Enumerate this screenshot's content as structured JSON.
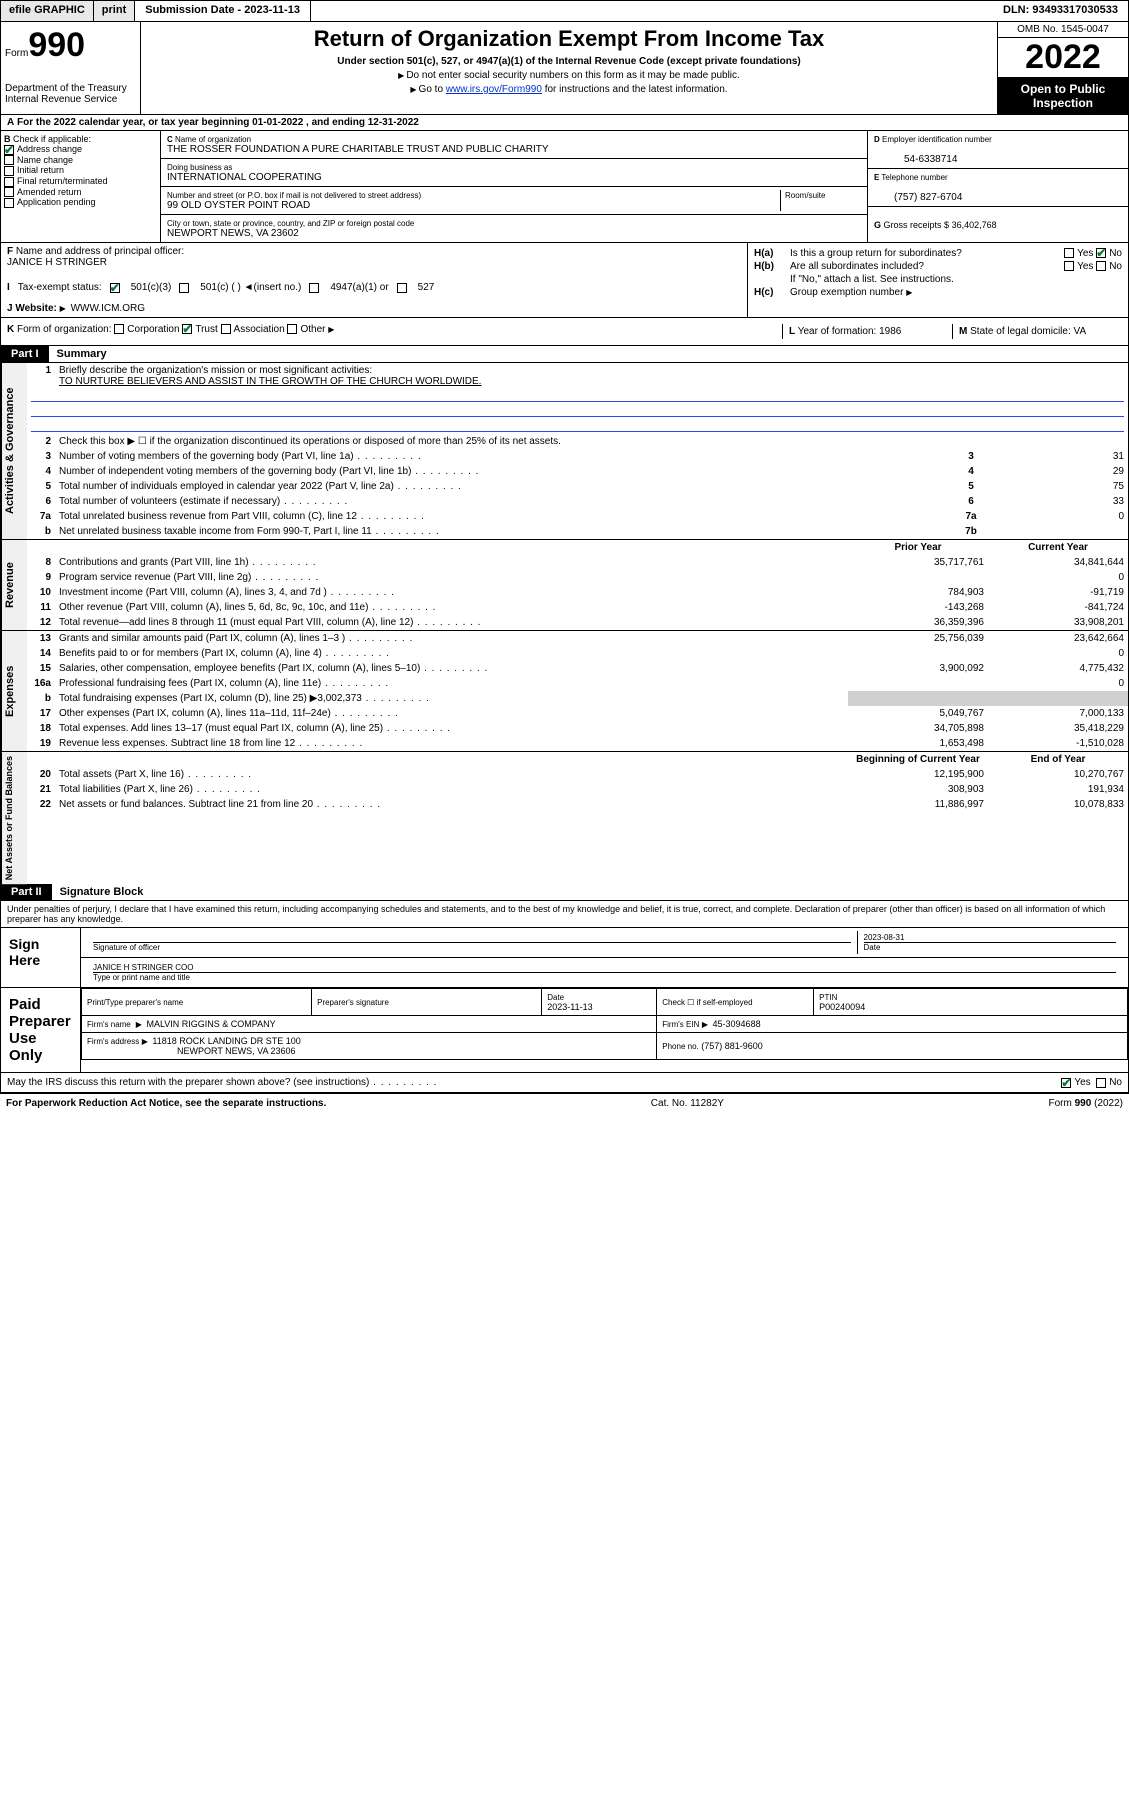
{
  "topbar": {
    "efile": "efile GRAPHIC",
    "print": "print",
    "subdate_label": "Submission Date - ",
    "subdate": "2023-11-13",
    "dln_label": "DLN: ",
    "dln": "93493317030533"
  },
  "header": {
    "form_word": "Form",
    "form_num": "990",
    "dept": "Department of the Treasury",
    "irs": "Internal Revenue Service",
    "title": "Return of Organization Exempt From Income Tax",
    "sub1": "Under section 501(c), 527, or 4947(a)(1) of the Internal Revenue Code (except private foundations)",
    "sub2": "Do not enter social security numbers on this form as it may be made public.",
    "sub3_pre": "Go to ",
    "sub3_link": "www.irs.gov/Form990",
    "sub3_post": " for instructions and the latest information.",
    "omb": "OMB No. 1545-0047",
    "year": "2022",
    "open": "Open to Public Inspection"
  },
  "calyear": {
    "text_pre": "For the 2022 calendar year, or tax year beginning ",
    "begin": "01-01-2022",
    "mid": " , and ending ",
    "end": "12-31-2022"
  },
  "B": {
    "label": "Check if applicable:",
    "items": [
      "Address change",
      "Name change",
      "Initial return",
      "Final return/terminated",
      "Amended return",
      "Application pending"
    ],
    "checked_idx": 0
  },
  "C": {
    "name_lbl": "Name of organization",
    "name": "THE ROSSER FOUNDATION A PURE CHARITABLE TRUST AND PUBLIC CHARITY",
    "dba_lbl": "Doing business as",
    "dba": "INTERNATIONAL COOPERATING",
    "addr_lbl": "Number and street (or P.O. box if mail is not delivered to street address)",
    "room_lbl": "Room/suite",
    "addr": "99 OLD OYSTER POINT ROAD",
    "city_lbl": "City or town, state or province, country, and ZIP or foreign postal code",
    "city": "NEWPORT NEWS, VA  23602"
  },
  "D": {
    "lbl": "Employer identification number",
    "val": "54-6338714"
  },
  "E": {
    "lbl": "Telephone number",
    "val": "(757) 827-6704"
  },
  "G": {
    "lbl": "Gross receipts $",
    "val": "36,402,768"
  },
  "F": {
    "lbl": "Name and address of principal officer:",
    "val": "JANICE H STRINGER"
  },
  "H": {
    "a": "Is this a group return for subordinates?",
    "b": "Are all subordinates included?",
    "b_note": "If \"No,\" attach a list. See instructions.",
    "c": "Group exemption number",
    "yes": "Yes",
    "no": "No"
  },
  "I": {
    "lbl": "Tax-exempt status:",
    "opts": [
      "501(c)(3)",
      "501(c) (  )  ◄(insert no.)",
      "4947(a)(1) or",
      "527"
    ]
  },
  "J": {
    "lbl": "Website:",
    "val": "WWW.ICM.ORG"
  },
  "K": {
    "lbl": "Form of organization:",
    "opts": [
      "Corporation",
      "Trust",
      "Association",
      "Other"
    ],
    "checked_idx": 1
  },
  "L": {
    "lbl": "Year of formation:",
    "val": "1986"
  },
  "M": {
    "lbl": "State of legal domicile:",
    "val": "VA"
  },
  "partI": {
    "label": "Part I",
    "title": "Summary"
  },
  "summary": {
    "q1_lbl": "Briefly describe the organization's mission or most significant activities:",
    "q1_val": "TO NURTURE BELIEVERS AND ASSIST IN THE GROWTH OF THE CHURCH WORLDWIDE.",
    "q2": "Check this box ▶ ☐ if the organization discontinued its operations or disposed of more than 25% of its net assets.",
    "rows_gov": [
      {
        "n": "3",
        "t": "Number of voting members of the governing body (Part VI, line 1a)",
        "box": "3",
        "v": "31"
      },
      {
        "n": "4",
        "t": "Number of independent voting members of the governing body (Part VI, line 1b)",
        "box": "4",
        "v": "29"
      },
      {
        "n": "5",
        "t": "Total number of individuals employed in calendar year 2022 (Part V, line 2a)",
        "box": "5",
        "v": "75"
      },
      {
        "n": "6",
        "t": "Total number of volunteers (estimate if necessary)",
        "box": "6",
        "v": "33"
      },
      {
        "n": "7a",
        "t": "Total unrelated business revenue from Part VIII, column (C), line 12",
        "box": "7a",
        "v": "0"
      },
      {
        "n": "b",
        "t": "Net unrelated business taxable income from Form 990-T, Part I, line 11",
        "box": "7b",
        "v": ""
      }
    ],
    "col_prior": "Prior Year",
    "col_current": "Current Year",
    "rows_rev": [
      {
        "n": "8",
        "t": "Contributions and grants (Part VIII, line 1h)",
        "p": "35,717,761",
        "c": "34,841,644"
      },
      {
        "n": "9",
        "t": "Program service revenue (Part VIII, line 2g)",
        "p": "",
        "c": "0"
      },
      {
        "n": "10",
        "t": "Investment income (Part VIII, column (A), lines 3, 4, and 7d )",
        "p": "784,903",
        "c": "-91,719"
      },
      {
        "n": "11",
        "t": "Other revenue (Part VIII, column (A), lines 5, 6d, 8c, 9c, 10c, and 11e)",
        "p": "-143,268",
        "c": "-841,724"
      },
      {
        "n": "12",
        "t": "Total revenue—add lines 8 through 11 (must equal Part VIII, column (A), line 12)",
        "p": "36,359,396",
        "c": "33,908,201"
      }
    ],
    "rows_exp": [
      {
        "n": "13",
        "t": "Grants and similar amounts paid (Part IX, column (A), lines 1–3 )",
        "p": "25,756,039",
        "c": "23,642,664"
      },
      {
        "n": "14",
        "t": "Benefits paid to or for members (Part IX, column (A), line 4)",
        "p": "",
        "c": "0"
      },
      {
        "n": "15",
        "t": "Salaries, other compensation, employee benefits (Part IX, column (A), lines 5–10)",
        "p": "3,900,092",
        "c": "4,775,432"
      },
      {
        "n": "16a",
        "t": "Professional fundraising fees (Part IX, column (A), line 11e)",
        "p": "",
        "c": "0"
      },
      {
        "n": "b",
        "t": "Total fundraising expenses (Part IX, column (D), line 25) ▶3,002,373",
        "p": "shade",
        "c": "shade"
      },
      {
        "n": "17",
        "t": "Other expenses (Part IX, column (A), lines 11a–11d, 11f–24e)",
        "p": "5,049,767",
        "c": "7,000,133"
      },
      {
        "n": "18",
        "t": "Total expenses. Add lines 13–17 (must equal Part IX, column (A), line 25)",
        "p": "34,705,898",
        "c": "35,418,229"
      },
      {
        "n": "19",
        "t": "Revenue less expenses. Subtract line 18 from line 12",
        "p": "1,653,498",
        "c": "-1,510,028"
      }
    ],
    "col_begin": "Beginning of Current Year",
    "col_end": "End of Year",
    "rows_net": [
      {
        "n": "20",
        "t": "Total assets (Part X, line 16)",
        "p": "12,195,900",
        "c": "10,270,767"
      },
      {
        "n": "21",
        "t": "Total liabilities (Part X, line 26)",
        "p": "308,903",
        "c": "191,934"
      },
      {
        "n": "22",
        "t": "Net assets or fund balances. Subtract line 21 from line 20",
        "p": "11,886,997",
        "c": "10,078,833"
      }
    ],
    "vlabels": {
      "gov": "Activities & Governance",
      "rev": "Revenue",
      "exp": "Expenses",
      "net": "Net Assets or Fund Balances"
    }
  },
  "partII": {
    "label": "Part II",
    "title": "Signature Block"
  },
  "penalties": "Under penalties of perjury, I declare that I have examined this return, including accompanying schedules and statements, and to the best of my knowledge and belief, it is true, correct, and complete. Declaration of preparer (other than officer) is based on all information of which preparer has any knowledge.",
  "sign": {
    "here": "Sign Here",
    "sig_lbl": "Signature of officer",
    "date_lbl": "Date",
    "date": "2023-08-31",
    "name": "JANICE H STRINGER  COO",
    "name_lbl": "Type or print name and title"
  },
  "paid": {
    "label": "Paid Preparer Use Only",
    "prep_name_lbl": "Print/Type preparer's name",
    "prep_sig_lbl": "Preparer's signature",
    "date_lbl": "Date",
    "date": "2023-11-13",
    "self_lbl": "Check ☐ if self-employed",
    "ptin_lbl": "PTIN",
    "ptin": "P00240094",
    "firm_name_lbl": "Firm's name",
    "firm_name": "MALVIN RIGGINS & COMPANY",
    "firm_ein_lbl": "Firm's EIN",
    "firm_ein": "45-3094688",
    "firm_addr_lbl": "Firm's address",
    "firm_addr1": "11818 ROCK LANDING DR STE 100",
    "firm_addr2": "NEWPORT NEWS, VA  23606",
    "phone_lbl": "Phone no.",
    "phone": "(757) 881-9600"
  },
  "discuss": {
    "q": "May the IRS discuss this return with the preparer shown above? (see instructions)",
    "yes": "Yes",
    "no": "No"
  },
  "footer": {
    "left": "For Paperwork Reduction Act Notice, see the separate instructions.",
    "mid": "Cat. No. 11282Y",
    "right": "Form 990 (2022)"
  },
  "A_letter": "A",
  "B_letter": "B",
  "C_letter": "C",
  "D_letter": "D",
  "E_letter": "E",
  "F_letter": "F",
  "G_letter": "G",
  "I_letter": "I",
  "J_letter": "J",
  "K_letter": "K",
  "L_letter": "L",
  "M_letter": "M"
}
